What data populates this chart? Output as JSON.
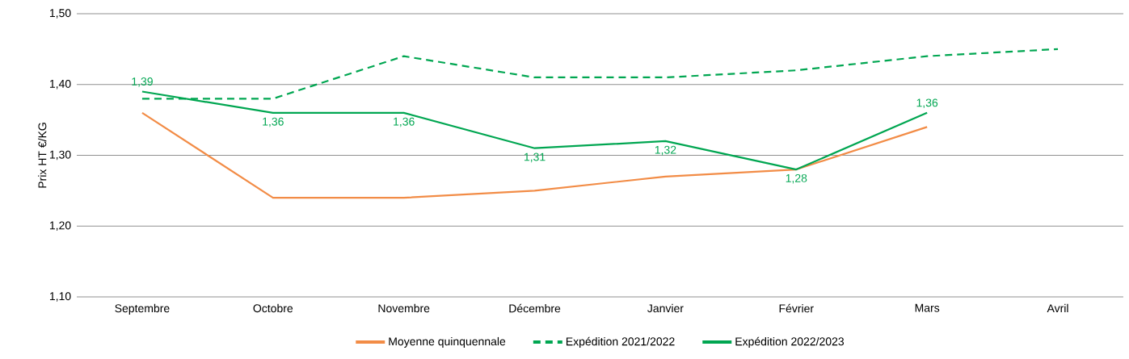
{
  "chart_data": {
    "type": "line",
    "ylabel": "Prix HT €/KG",
    "categories": [
      "Septembre",
      "Octobre",
      "Novembre",
      "Décembre",
      "Janvier",
      "Février",
      "Mars",
      "Avril"
    ],
    "series": [
      {
        "name": "Moyenne quinquennale",
        "color": "#f28c46",
        "line_style": "solid",
        "values": [
          1.36,
          1.24,
          1.24,
          1.25,
          1.27,
          1.28,
          1.34,
          null
        ]
      },
      {
        "name": "Expédition 2021/2022",
        "color": "#00a651",
        "line_style": "dashed",
        "values": [
          1.38,
          1.38,
          1.44,
          1.41,
          1.41,
          1.42,
          1.44,
          1.45
        ]
      },
      {
        "name": "Expédition 2022/2023",
        "color": "#00a651",
        "line_style": "solid",
        "values": [
          1.39,
          1.36,
          1.36,
          1.31,
          1.32,
          1.28,
          1.36,
          null
        ],
        "value_labels": [
          "1,39",
          "1,36",
          "1,36",
          "1,31",
          "1,32",
          "1,28",
          "1,36",
          null
        ]
      }
    ],
    "ylim": [
      1.1,
      1.5
    ],
    "yticks": [
      {
        "value": 1.1,
        "label": "1,10"
      },
      {
        "value": 1.2,
        "label": "1,20"
      },
      {
        "value": 1.3,
        "label": "1,30"
      },
      {
        "value": 1.4,
        "label": "1,40"
      },
      {
        "value": 1.5,
        "label": "1,50"
      }
    ],
    "grid": "y",
    "legend": "bottom",
    "marker": "none"
  }
}
